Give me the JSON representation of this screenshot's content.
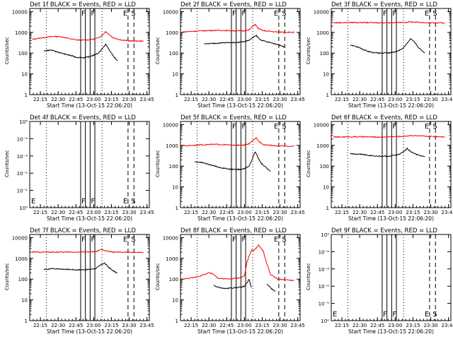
{
  "colors": {
    "events": "#000000",
    "lld": "#ff0000",
    "axes": "#000000",
    "background": "#ffffff"
  },
  "common": {
    "ylabel": "Counts/sec",
    "xlabel": "Start Time (13-Oct-15 22:06:20)",
    "x_tick_labels": [
      "22:15",
      "22:30",
      "22:45",
      "23:00",
      "23:15",
      "23:30",
      "23:45"
    ],
    "x_tick_values_min": [
      9,
      24,
      39,
      54,
      69,
      84,
      99
    ],
    "x_range_min": [
      0,
      101
    ],
    "y_tick_labels": [
      "1",
      "10",
      "100",
      "1000",
      "10000"
    ],
    "y_log_range": [
      0,
      4.15
    ],
    "dotted_lines_min": [
      14,
      61
    ],
    "solid_lines_min": [
      43,
      47,
      51,
      55
    ],
    "dashed_lines_min": [
      83,
      88
    ],
    "marker_labels": {
      "E": "E",
      "S": "S",
      "F": "F"
    },
    "empty_y_tick_labels": [
      "10⁵",
      "10⁻⁴",
      "10⁻³",
      "10⁻²",
      "10⁻¹",
      "10⁰"
    ]
  },
  "chart_data": [
    {
      "type": "line",
      "title": "Det 1f BLACK = Events, RED = LLD",
      "series": [
        {
          "color": "#ff0000",
          "points": [
            [
              2,
              460
            ],
            [
              8,
              520
            ],
            [
              14,
              580
            ],
            [
              20,
              640
            ],
            [
              26,
              620
            ],
            [
              30,
              560
            ],
            [
              34,
              490
            ],
            [
              40,
              430
            ],
            [
              46,
              420
            ],
            [
              50,
              440
            ],
            [
              54,
              470
            ],
            [
              58,
              540
            ],
            [
              62,
              800
            ],
            [
              64,
              1100
            ],
            [
              67,
              800
            ],
            [
              70,
              560
            ],
            [
              78,
              420
            ],
            [
              86,
              380
            ],
            [
              96,
              380
            ]
          ]
        },
        {
          "color": "#000000",
          "points": [
            [
              12,
              130
            ],
            [
              18,
              140
            ],
            [
              22,
              120
            ],
            [
              28,
              95
            ],
            [
              34,
              78
            ],
            [
              40,
              62
            ],
            [
              46,
              60
            ],
            [
              50,
              66
            ],
            [
              54,
              80
            ],
            [
              58,
              100
            ],
            [
              62,
              180
            ],
            [
              64,
              270
            ],
            [
              66,
              180
            ],
            [
              70,
              80
            ],
            [
              74,
              42
            ]
          ]
        }
      ]
    },
    {
      "type": "line",
      "title": "Det 2f BLACK = Events, RED = LLD",
      "series": [
        {
          "color": "#ff0000",
          "points": [
            [
              2,
              1050
            ],
            [
              10,
              1120
            ],
            [
              20,
              1200
            ],
            [
              30,
              1250
            ],
            [
              40,
              1220
            ],
            [
              48,
              1180
            ],
            [
              54,
              1200
            ],
            [
              58,
              1300
            ],
            [
              61,
              2000
            ],
            [
              63,
              2400
            ],
            [
              66,
              1500
            ],
            [
              70,
              1200
            ],
            [
              80,
              1050
            ],
            [
              96,
              1000
            ]
          ]
        },
        {
          "color": "#000000",
          "points": [
            [
              20,
              270
            ],
            [
              30,
              300
            ],
            [
              40,
              320
            ],
            [
              48,
              330
            ],
            [
              54,
              360
            ],
            [
              58,
              420
            ],
            [
              62,
              600
            ],
            [
              64,
              700
            ],
            [
              67,
              450
            ],
            [
              72,
              360
            ],
            [
              80,
              280
            ],
            [
              88,
              200
            ]
          ]
        }
      ]
    },
    {
      "type": "line",
      "title": "Det 3f BLACK = Events, RED = LLD",
      "series": [
        {
          "color": "#ff0000",
          "points": [
            [
              2,
              2900
            ],
            [
              20,
              3000
            ],
            [
              40,
              2900
            ],
            [
              60,
              3000
            ],
            [
              68,
              3200
            ],
            [
              80,
              2900
            ],
            [
              96,
              2800
            ]
          ]
        },
        {
          "color": "#000000",
          "points": [
            [
              16,
              250
            ],
            [
              22,
              200
            ],
            [
              28,
              140
            ],
            [
              34,
              110
            ],
            [
              40,
              100
            ],
            [
              48,
              100
            ],
            [
              54,
              115
            ],
            [
              60,
              160
            ],
            [
              64,
              300
            ],
            [
              67,
              500
            ],
            [
              70,
              350
            ],
            [
              74,
              180
            ],
            [
              79,
              100
            ]
          ]
        }
      ]
    },
    {
      "type": "line",
      "title": "Det 4f BLACK = Events, RED = LLD",
      "empty": true,
      "series": []
    },
    {
      "type": "line",
      "title": "Det 5f BLACK = Events, RED = LLD",
      "series": [
        {
          "color": "#ff0000",
          "points": [
            [
              2,
              950
            ],
            [
              10,
              1000
            ],
            [
              20,
              1080
            ],
            [
              30,
              1120
            ],
            [
              40,
              1050
            ],
            [
              48,
              1000
            ],
            [
              54,
              1020
            ],
            [
              58,
              1200
            ],
            [
              62,
              1800
            ],
            [
              64,
              2300
            ],
            [
              66,
              1600
            ],
            [
              70,
              1100
            ],
            [
              80,
              950
            ],
            [
              96,
              900
            ]
          ]
        },
        {
          "color": "#000000",
          "points": [
            [
              12,
              160
            ],
            [
              18,
              150
            ],
            [
              24,
              120
            ],
            [
              30,
              95
            ],
            [
              36,
              80
            ],
            [
              42,
              70
            ],
            [
              48,
              68
            ],
            [
              54,
              75
            ],
            [
              58,
              100
            ],
            [
              61,
              250
            ],
            [
              63,
              500
            ],
            [
              65,
              300
            ],
            [
              68,
              140
            ],
            [
              72,
              90
            ],
            [
              76,
              55
            ]
          ]
        }
      ]
    },
    {
      "type": "line",
      "title": "Det 6f BLACK = Events, RED = LLD",
      "series": [
        {
          "color": "#ff0000",
          "points": [
            [
              2,
              2500
            ],
            [
              20,
              2600
            ],
            [
              40,
              2500
            ],
            [
              60,
              2700
            ],
            [
              68,
              3000
            ],
            [
              80,
              2700
            ],
            [
              96,
              2600
            ]
          ]
        },
        {
          "color": "#000000",
          "points": [
            [
              16,
              400
            ],
            [
              24,
              380
            ],
            [
              32,
              330
            ],
            [
              40,
              300
            ],
            [
              50,
              300
            ],
            [
              58,
              380
            ],
            [
              62,
              550
            ],
            [
              64,
              700
            ],
            [
              67,
              500
            ],
            [
              72,
              360
            ],
            [
              79,
              280
            ]
          ]
        }
      ]
    },
    {
      "type": "line",
      "title": "Det 7f BLACK = Events, RED = LLD",
      "series": [
        {
          "color": "#ff0000",
          "points": [
            [
              2,
              2000
            ],
            [
              20,
              2000
            ],
            [
              40,
              2000
            ],
            [
              56,
              2100
            ],
            [
              60,
              2600
            ],
            [
              63,
              2400
            ],
            [
              70,
              2000
            ],
            [
              96,
              1900
            ]
          ]
        },
        {
          "color": "#000000",
          "points": [
            [
              12,
              290
            ],
            [
              20,
              320
            ],
            [
              30,
              300
            ],
            [
              40,
              280
            ],
            [
              50,
              290
            ],
            [
              56,
              330
            ],
            [
              60,
              480
            ],
            [
              63,
              600
            ],
            [
              66,
              400
            ],
            [
              70,
              260
            ],
            [
              74,
              190
            ]
          ]
        }
      ]
    },
    {
      "type": "line",
      "title": "Det 8f BLACK = Events, RED = LLD",
      "series": [
        {
          "color": "#ff0000",
          "points": [
            [
              2,
              100
            ],
            [
              10,
              115
            ],
            [
              18,
              150
            ],
            [
              24,
              200
            ],
            [
              28,
              170
            ],
            [
              32,
              110
            ],
            [
              40,
              100
            ],
            [
              48,
              110
            ],
            [
              54,
              140
            ],
            [
              56,
              600
            ],
            [
              58,
              1300
            ],
            [
              60,
              2500
            ],
            [
              62,
              2400
            ],
            [
              64,
              3200
            ],
            [
              66,
              4500
            ],
            [
              68,
              3000
            ],
            [
              70,
              2200
            ],
            [
              72,
              800
            ],
            [
              76,
              170
            ],
            [
              82,
              100
            ],
            [
              90,
              90
            ],
            [
              96,
              85
            ]
          ]
        },
        {
          "color": "#000000",
          "points": [
            [
              28,
              50
            ],
            [
              32,
              40
            ],
            [
              38,
              35
            ],
            [
              44,
              38
            ],
            [
              50,
              40
            ],
            [
              54,
              45
            ],
            [
              57,
              80
            ],
            [
              58,
              100
            ],
            [
              59,
              55
            ],
            [
              60,
              40
            ]
          ]
        },
        {
          "color": "#000000",
          "points": [
            [
              73,
              55
            ],
            [
              76,
              40
            ],
            [
              78,
              30
            ],
            [
              80,
              25
            ]
          ]
        }
      ]
    },
    {
      "type": "line",
      "title": "Det 9f BLACK = Events, RED = LLD",
      "empty": true,
      "series": []
    }
  ]
}
